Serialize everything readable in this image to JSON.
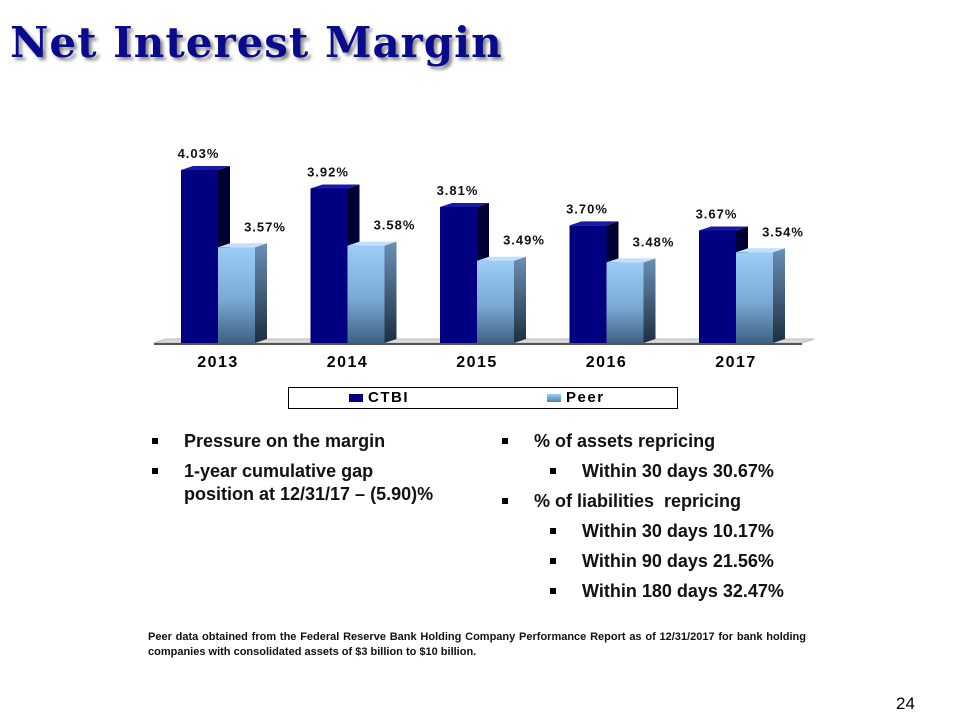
{
  "slide": {
    "title": "Net Interest Margin",
    "page_number": "24"
  },
  "chart_data": {
    "type": "bar",
    "categories": [
      "2013",
      "2014",
      "2015",
      "2016",
      "2017"
    ],
    "series": [
      {
        "name": "CTBI",
        "values": [
          4.03,
          3.92,
          3.81,
          3.7,
          3.67
        ],
        "labels": [
          "4.03%",
          "3.92%",
          "3.81%",
          "3.70%",
          "3.67%"
        ],
        "color": "#000080"
      },
      {
        "name": "Peer",
        "values": [
          3.57,
          3.58,
          3.49,
          3.48,
          3.54
        ],
        "labels": [
          "3.57%",
          "3.58%",
          "3.49%",
          "3.48%",
          "3.54%"
        ],
        "color": "#8fc2f0"
      }
    ],
    "ylim": [
      3.0,
      4.1
    ],
    "legend": "bottom",
    "grid": false
  },
  "bullets_left": [
    "Pressure on the margin",
    "1-year cumulative gap position at 12/31/17 – (5.90)%"
  ],
  "bullets_right": {
    "assets_heading": "% of assets repricing",
    "assets_items": [
      "Within 30 days 30.67%"
    ],
    "liabilities_heading": "% of liabilities  repricing",
    "liabilities_items": [
      "Within 30 days 10.17%",
      "Within 90 days 21.56%",
      "Within 180 days 32.47%"
    ]
  },
  "footnote": "Peer data obtained from the Federal Reserve Bank Holding Company Performance Report as of 12/31/2017 for bank holding companies with consolidated assets of $3 billion to $10 billion."
}
